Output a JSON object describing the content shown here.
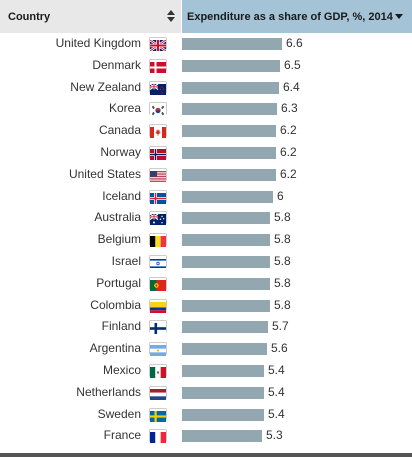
{
  "header": {
    "country_label": "Country",
    "metric_label": "Expenditure as a share of GDP, %, 2014"
  },
  "chart_data": {
    "type": "bar",
    "orientation": "horizontal",
    "categories": [
      "United Kingdom",
      "Denmark",
      "New Zealand",
      "Korea",
      "Canada",
      "Norway",
      "United States",
      "Iceland",
      "Australia",
      "Belgium",
      "Israel",
      "Portugal",
      "Colombia",
      "Finland",
      "Argentina",
      "Mexico",
      "Netherlands",
      "Sweden",
      "France"
    ],
    "values": [
      6.6,
      6.5,
      6.4,
      6.3,
      6.2,
      6.2,
      6.2,
      6,
      5.8,
      5.8,
      5.8,
      5.8,
      5.8,
      5.7,
      5.6,
      5.4,
      5.4,
      5.4,
      5.3
    ],
    "value_labels": [
      "6.6",
      "6.5",
      "6.4",
      "6.3",
      "6.2",
      "6.2",
      "6.2",
      "6",
      "5.8",
      "5.8",
      "5.8",
      "5.8",
      "5.8",
      "5.7",
      "5.6",
      "5.4",
      "5.4",
      "5.4",
      "5.3"
    ],
    "bar_color": "#93a7b1"
  },
  "flag_icons": [
    "flag-uk-icon",
    "flag-denmark-icon",
    "flag-new-zealand-icon",
    "flag-korea-icon",
    "flag-canada-icon",
    "flag-norway-icon",
    "flag-usa-icon",
    "flag-iceland-icon",
    "flag-australia-icon",
    "flag-belgium-icon",
    "flag-israel-icon",
    "flag-portugal-icon",
    "flag-colombia-icon",
    "flag-finland-icon",
    "flag-argentina-icon",
    "flag-mexico-icon",
    "flag-netherlands-icon",
    "flag-sweden-icon",
    "flag-france-icon"
  ],
  "colors": {
    "header_country_bg": "#e8e8e8",
    "header_metric_bg": "#a4c3d6"
  }
}
